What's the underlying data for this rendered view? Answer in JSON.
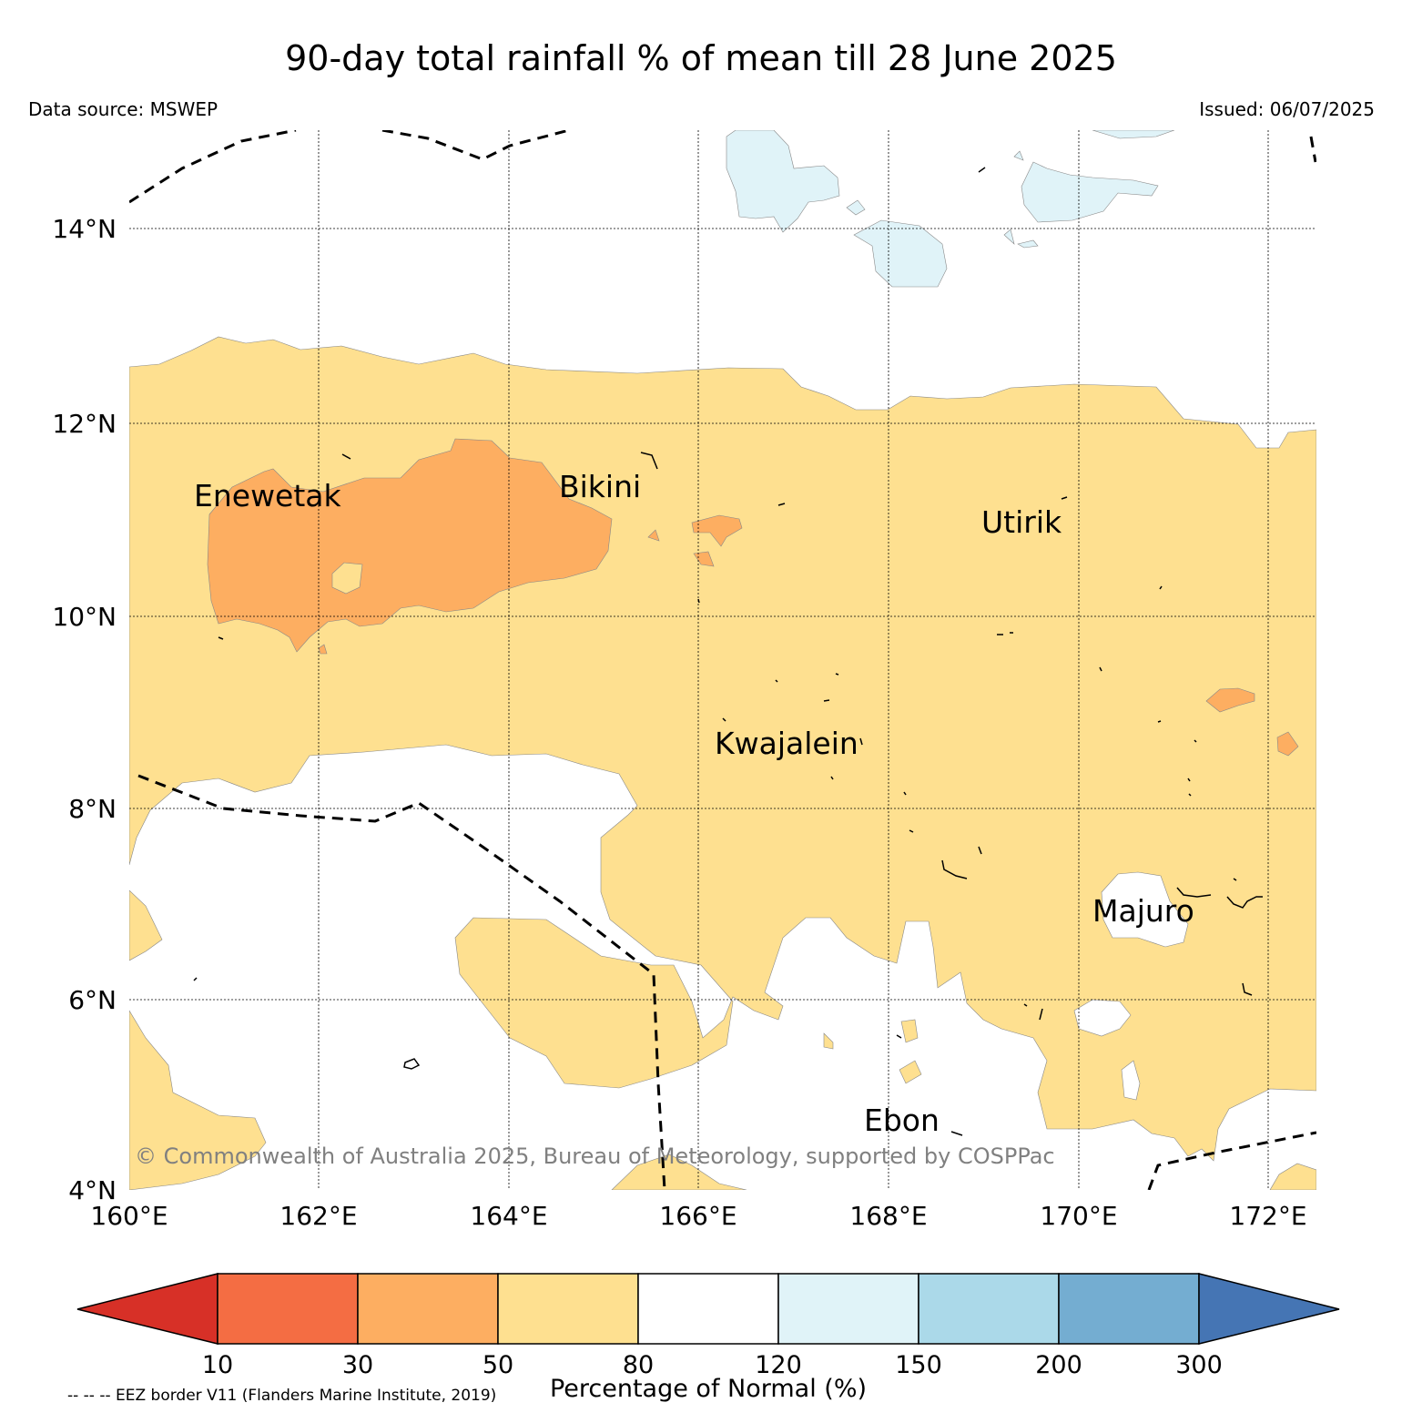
{
  "title": "90-day total rainfall % of mean till 28 June 2025",
  "data_source": "Data source: MSWEP",
  "issued": "Issued: 06/07/2025",
  "copyright": "© Commonwealth of Australia 2025, Bureau of Meteorology, supported by COSPPac",
  "eez_note": "-- -- -- EEZ border V11 (Flanders Marine Institute, 2019)",
  "map": {
    "lon_range": [
      160,
      172.5
    ],
    "lat_range": [
      4,
      15
    ],
    "lon_ticks": [
      {
        "value": 160,
        "label": "160°E"
      },
      {
        "value": 162,
        "label": "162°E"
      },
      {
        "value": 164,
        "label": "164°E"
      },
      {
        "value": 166,
        "label": "166°E"
      },
      {
        "value": 168,
        "label": "168°E"
      },
      {
        "value": 170,
        "label": "170°E"
      },
      {
        "value": 172,
        "label": "172°E"
      }
    ],
    "lat_ticks": [
      {
        "value": 4,
        "label": "4°N"
      },
      {
        "value": 6,
        "label": "6°N"
      },
      {
        "value": 8,
        "label": "8°N"
      },
      {
        "value": 10,
        "label": "10°N"
      },
      {
        "value": 12,
        "label": "12°N"
      },
      {
        "value": 14,
        "label": "14°N"
      }
    ],
    "places": [
      {
        "name": "Enewetak",
        "lon": 162.3,
        "lat": 11.3
      },
      {
        "name": "Bikini",
        "lon": 165.5,
        "lat": 11.6
      },
      {
        "name": "Utirik",
        "lon": 169.8,
        "lat": 11.2
      },
      {
        "name": "Kwajalein",
        "lon": 167.6,
        "lat": 8.7
      },
      {
        "name": "Majuro",
        "lon": 171.2,
        "lat": 7.1
      },
      {
        "name": "Ebon",
        "lon": 168.6,
        "lat": 4.9
      }
    ]
  },
  "colorbar": {
    "label": "Percentage of Normal (%)",
    "boundaries": [
      "10",
      "30",
      "50",
      "80",
      "120",
      "150",
      "200",
      "300"
    ],
    "colors": {
      "below_10": "#d73027",
      "10_30": "#f46d43",
      "30_50": "#fdae61",
      "50_80": "#fee090",
      "80_120": "#ffffff",
      "120_150": "#e0f3f8",
      "150_200": "#abd9e9",
      "200_300": "#74add1",
      "above_300": "#4575b4"
    }
  }
}
